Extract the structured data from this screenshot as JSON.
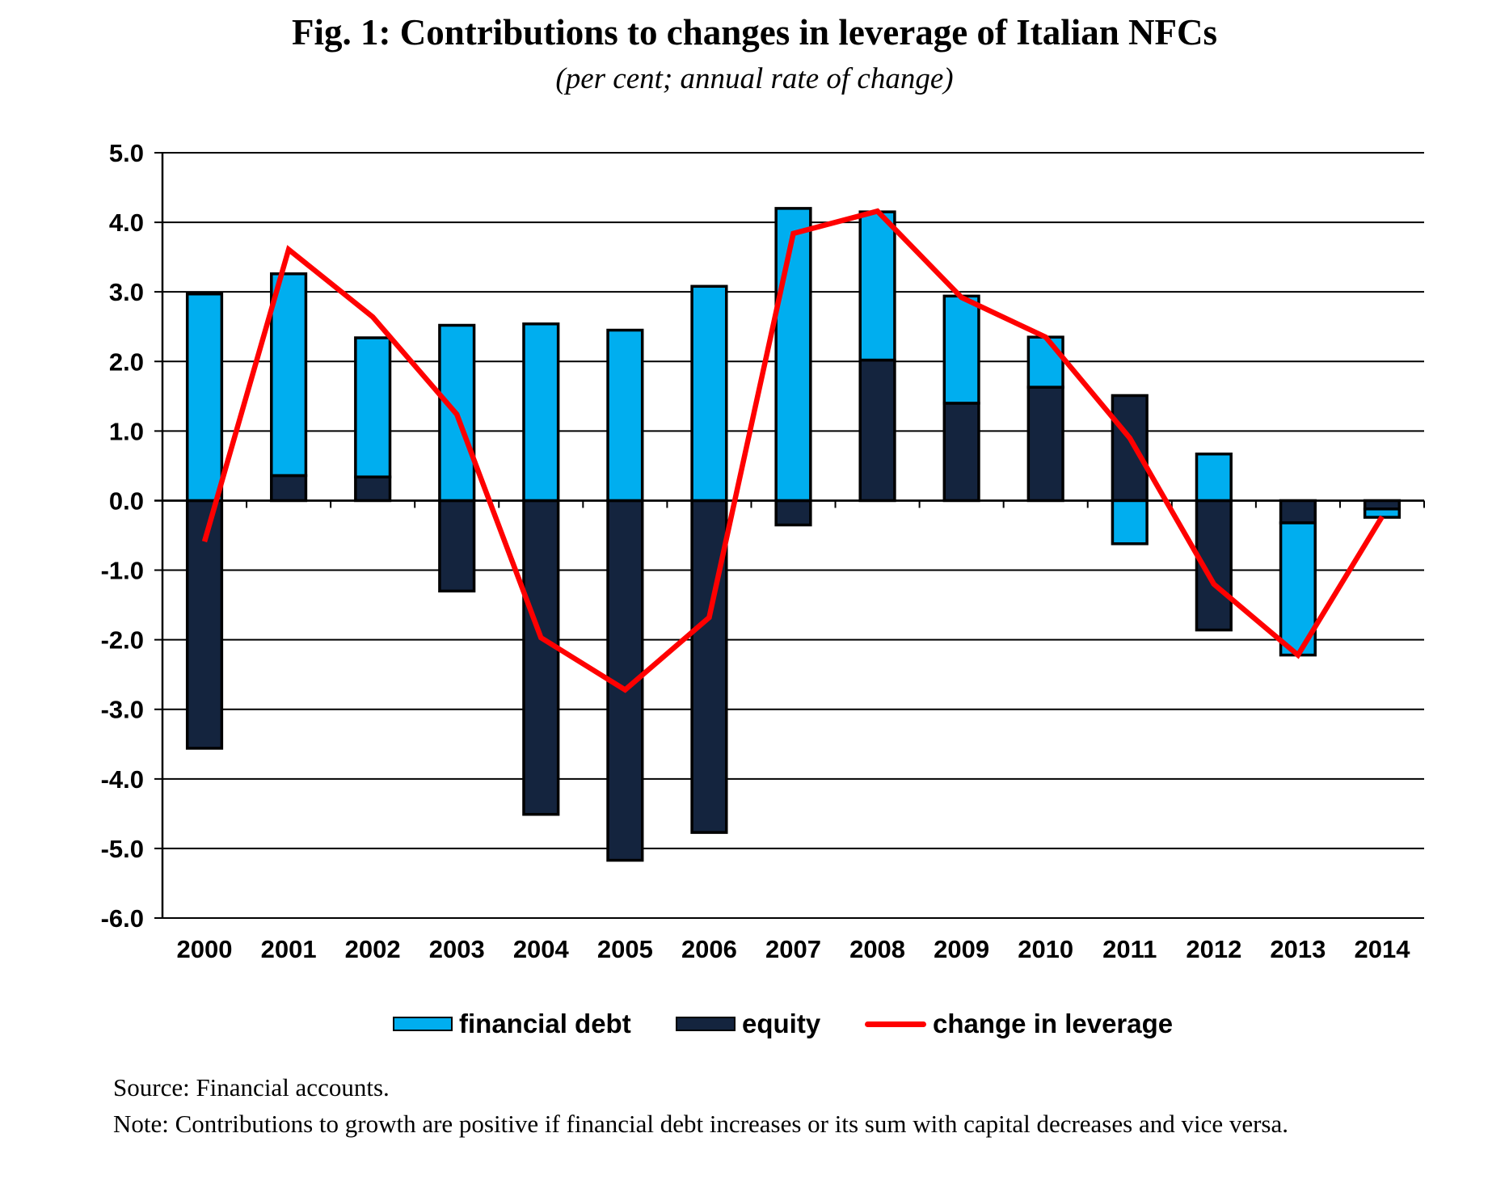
{
  "title": "Fig. 1: Contributions to changes in leverage of Italian NFCs",
  "subtitle": "(per cent; annual rate of change)",
  "source": "Source: Financial accounts.",
  "note": "Note: Contributions to growth are positive if financial debt increases or its sum with capital decreases and vice versa.",
  "colors": {
    "financial_debt": "#00AEEF",
    "equity": "#14243E",
    "change_in_leverage": "#FF0000",
    "grid": "#000000"
  },
  "legend": [
    {
      "label": "financial debt",
      "kind": "swatch",
      "series": "financial_debt"
    },
    {
      "label": "equity",
      "kind": "swatch",
      "series": "equity"
    },
    {
      "label": "change in leverage",
      "kind": "line",
      "series": "change_in_leverage"
    }
  ],
  "chart_data": {
    "type": "bar",
    "subtype": "stacked bar with line overlay",
    "title": "Fig. 1: Contributions to changes in leverage of Italian NFCs",
    "subtitle": "(per cent; annual rate of change)",
    "xlabel": "",
    "ylabel": "",
    "categories": [
      "2000",
      "2001",
      "2002",
      "2003",
      "2004",
      "2005",
      "2006",
      "2007",
      "2008",
      "2009",
      "2010",
      "2011",
      "2012",
      "2013",
      "2014"
    ],
    "ylim": [
      -6.0,
      5.0
    ],
    "yticks": [
      5.0,
      4.0,
      3.0,
      2.0,
      1.0,
      0.0,
      -1.0,
      -2.0,
      -3.0,
      -4.0,
      -5.0,
      -6.0
    ],
    "ytick_labels": [
      "5.0",
      "4.0",
      "3.0",
      "2.0",
      "1.0",
      "0.0",
      "-1.0",
      "-2.0",
      "-3.0",
      "-4.0",
      "-5.0",
      "-6.0"
    ],
    "grid": true,
    "legend_position": "bottom",
    "stack_order": [
      "equity",
      "financial_debt"
    ],
    "series": [
      {
        "name": "financial debt",
        "key": "financial_debt",
        "type": "bar",
        "values": [
          2.97,
          2.9,
          2.0,
          2.52,
          2.54,
          2.45,
          3.08,
          4.2,
          2.13,
          1.54,
          0.72,
          -0.62,
          0.67,
          -1.9,
          -0.12
        ]
      },
      {
        "name": "equity",
        "key": "equity",
        "type": "bar",
        "values": [
          -3.56,
          0.36,
          0.34,
          -1.3,
          -4.51,
          -5.17,
          -4.77,
          -0.35,
          2.02,
          1.4,
          1.63,
          1.51,
          -1.86,
          -0.32,
          -0.12
        ]
      },
      {
        "name": "change in leverage",
        "key": "change_in_leverage",
        "type": "line",
        "values": [
          -0.59,
          3.61,
          2.64,
          1.24,
          -1.97,
          -2.72,
          -1.68,
          3.84,
          4.16,
          2.92,
          2.35,
          0.9,
          -1.2,
          -2.22,
          -0.23
        ]
      }
    ]
  }
}
